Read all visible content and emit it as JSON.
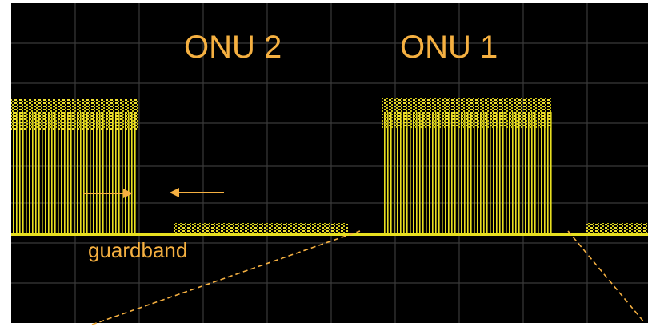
{
  "labels": {
    "onu_2": "ONU 2",
    "onu_1": "ONU 1",
    "guardband": "guardband"
  }
}
